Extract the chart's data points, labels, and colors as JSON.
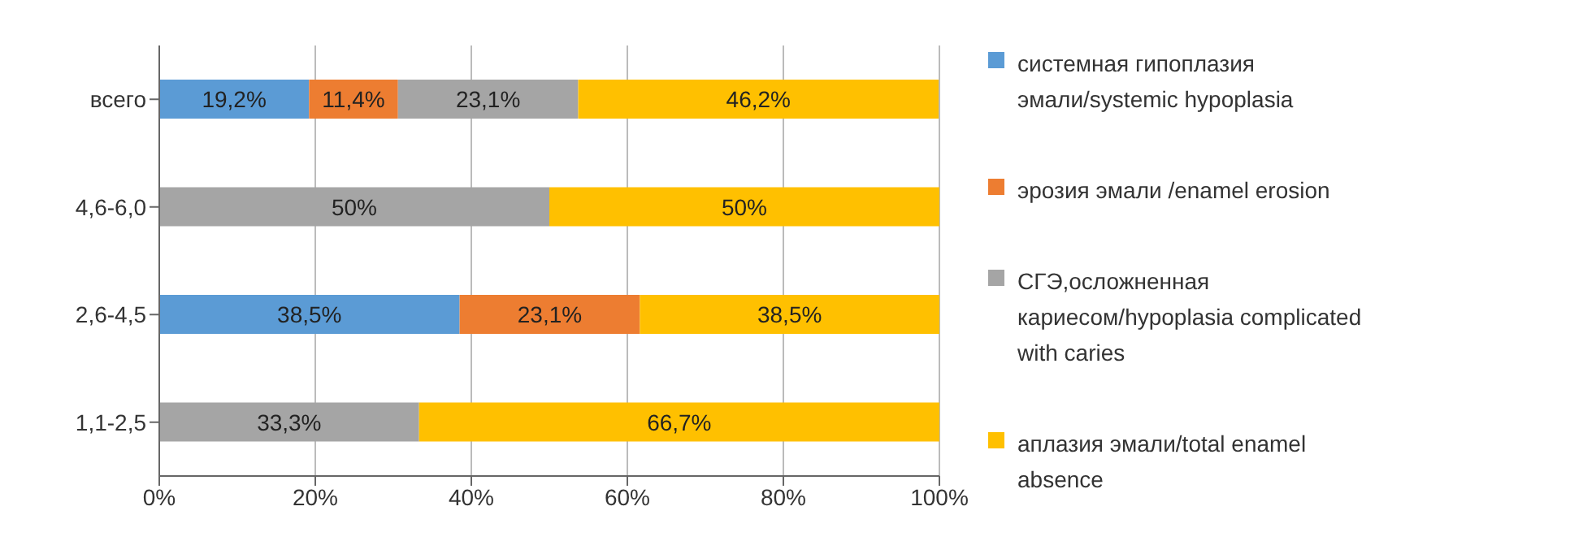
{
  "chart_data": {
    "type": "bar",
    "orientation": "horizontal",
    "stacked": true,
    "categories": [
      "всего",
      "4,6-6,0",
      "2,6-4,5",
      "1,1-2,5"
    ],
    "series": [
      {
        "name": "системная гипоплазия эмали/systemic hypoplasia",
        "color": "#5b9bd5",
        "values": [
          19.2,
          null,
          38.5,
          null
        ],
        "value_labels": [
          "19,2%",
          null,
          "38,5%",
          null
        ]
      },
      {
        "name": "эрозия эмали /enamel erosion",
        "color": "#ed7d31",
        "values": [
          11.4,
          null,
          23.1,
          null
        ],
        "value_labels": [
          "11,4%",
          null,
          "23,1%",
          null
        ]
      },
      {
        "name": "СГЭ,осложненная кариесом/hypoplasia complicated with caries",
        "color": "#a5a5a5",
        "values": [
          23.1,
          50,
          null,
          33.3
        ],
        "value_labels": [
          "23,1%",
          "50%",
          null,
          "33,3%"
        ]
      },
      {
        "name": "аплазия эмали/total enamel absence",
        "color": "#ffc000",
        "values": [
          46.2,
          50,
          38.5,
          66.7
        ],
        "value_labels": [
          "46,2%",
          "50%",
          "38,5%",
          "66,7%"
        ]
      }
    ],
    "xlim": [
      0,
      100
    ],
    "xticks": [
      {
        "value": 0,
        "label": "0%"
      },
      {
        "value": 20,
        "label": "20%"
      },
      {
        "value": 40,
        "label": "40%"
      },
      {
        "value": 60,
        "label": "60%"
      },
      {
        "value": 80,
        "label": "80%"
      },
      {
        "value": 100,
        "label": "100%"
      }
    ],
    "grid": "x",
    "legend": "right"
  }
}
